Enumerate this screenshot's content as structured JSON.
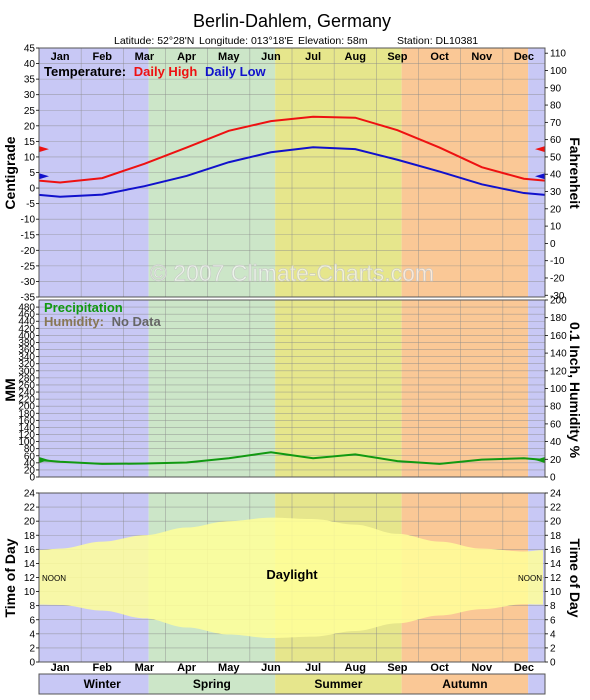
{
  "header": {
    "title": "Berlin-Dahlem,  Germany",
    "latitude": "Latitude: 52°28'N",
    "longitude": "Longitude: 013°18'E",
    "elevation": "Elevation: 58m",
    "station": "Station: DL10381"
  },
  "watermark": "© 2007 Climate-Charts.com",
  "months": [
    "Jan",
    "Feb",
    "Mar",
    "Apr",
    "May",
    "Jun",
    "Jul",
    "Aug",
    "Sep",
    "Oct",
    "Nov",
    "Dec"
  ],
  "seasons": [
    {
      "name": "Winter",
      "color": "#c8c8f5"
    },
    {
      "name": "Spring",
      "color": "#cce6c8"
    },
    {
      "name": "Summer",
      "color": "#e6e68c"
    },
    {
      "name": "Autumn",
      "color": "#fac896"
    }
  ],
  "chart_data": [
    {
      "type": "line",
      "legend_label": "Temperature:",
      "ylabel": "Centigrade",
      "ylabel_right": "Fahrenheit",
      "ylim": [
        -35,
        45
      ],
      "y_ticks": [
        -35,
        -30,
        -25,
        -20,
        -15,
        -10,
        -5,
        0,
        5,
        10,
        15,
        20,
        25,
        30,
        35,
        40,
        45
      ],
      "y2lim": [
        -31,
        113
      ],
      "y2_ticks": [
        -30,
        -20,
        -10,
        0,
        10,
        20,
        30,
        40,
        50,
        60,
        70,
        80,
        90,
        100,
        110
      ],
      "x": [
        "Jan",
        "Feb",
        "Mar",
        "Apr",
        "May",
        "Jun",
        "Jul",
        "Aug",
        "Sep",
        "Oct",
        "Nov",
        "Dec"
      ],
      "series": [
        {
          "name": "Daily High",
          "color": "#ee1111",
          "values": [
            1.8,
            3.2,
            7.8,
            13.0,
            18.4,
            21.5,
            22.9,
            22.6,
            18.6,
            13.0,
            6.7,
            3.0
          ]
        },
        {
          "name": "Daily Low",
          "color": "#1111cc",
          "values": [
            -2.8,
            -2.1,
            0.6,
            3.9,
            8.3,
            11.5,
            13.1,
            12.5,
            9.1,
            5.3,
            1.2,
            -1.6
          ]
        }
      ],
      "markers": {
        "high": 12.5,
        "low": 3.8
      }
    },
    {
      "type": "line",
      "legend_label_1": "Precipitation",
      "legend_label_2": "Humidity:",
      "legend_nodata": "No Data",
      "ylabel": "MM",
      "ylabel_right": "0.1 Inch, Humidity %",
      "ylim": [
        0,
        500
      ],
      "y_ticks": [
        0,
        20,
        40,
        60,
        80,
        100,
        120,
        140,
        160,
        180,
        200,
        220,
        240,
        260,
        280,
        300,
        320,
        340,
        360,
        380,
        400,
        420,
        440,
        460,
        480
      ],
      "y2lim": [
        0,
        200
      ],
      "y2_ticks": [
        0,
        20,
        40,
        60,
        80,
        100,
        120,
        140,
        160,
        180,
        200
      ],
      "x": [
        "Jan",
        "Feb",
        "Mar",
        "Apr",
        "May",
        "Jun",
        "Jul",
        "Aug",
        "Sep",
        "Oct",
        "Nov",
        "Dec"
      ],
      "series": [
        {
          "name": "Precipitation",
          "color": "#119911",
          "values": [
            43,
            37,
            38,
            41,
            53,
            70,
            53,
            64,
            45,
            37,
            49,
            53
          ]
        }
      ]
    },
    {
      "type": "area",
      "ylabel": "Time of Day",
      "ylabel_right": "Time of Day",
      "ylim": [
        0,
        24
      ],
      "y_ticks": [
        0,
        2,
        4,
        6,
        8,
        10,
        12,
        14,
        16,
        18,
        20,
        22,
        24
      ],
      "label": "Daylight",
      "noon_label": "NOON",
      "x": [
        "Jan",
        "Feb",
        "Mar",
        "Apr",
        "May",
        "Jun",
        "Jul",
        "Aug",
        "Sep",
        "Oct",
        "Nov",
        "Dec"
      ],
      "sunrise": [
        8.1,
        7.3,
        6.2,
        4.9,
        3.9,
        3.4,
        3.6,
        4.4,
        5.5,
        6.6,
        7.5,
        8.2
      ],
      "sunset": [
        16.1,
        17.1,
        18.0,
        19.1,
        20.0,
        20.5,
        20.3,
        19.5,
        18.2,
        17.1,
        16.1,
        15.7
      ],
      "daylight_color": "#ffff99"
    }
  ]
}
